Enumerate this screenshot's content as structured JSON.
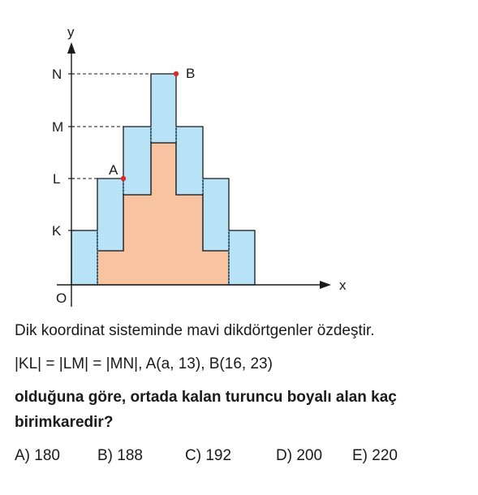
{
  "figure": {
    "axis_x": "x",
    "axis_y": "y",
    "origin": "O",
    "y_ticks": [
      "N",
      "M",
      "L",
      "K"
    ],
    "points": [
      {
        "name": "A",
        "color": "#e0282f"
      },
      {
        "name": "B",
        "color": "#e0282f"
      }
    ],
    "colors": {
      "blue": "#b8e2f6",
      "orange": "#f8c3a0",
      "outline": "#1a1a1a"
    }
  },
  "question": {
    "line1": "Dik koordinat sisteminde mavi dikdörtgenler özdeştir.",
    "line2": "|KL| = |LM| = |MN|, A(a, 13),  B(16, 23)",
    "line3": "olduğuna göre, ortada kalan turuncu boyalı alan kaç",
    "line4": "birimkaredir?"
  },
  "choices": [
    {
      "label": "A) 180"
    },
    {
      "label": "B) 188"
    },
    {
      "label": "C) 192"
    },
    {
      "label": "D) 200"
    },
    {
      "label": "E) 220"
    }
  ]
}
